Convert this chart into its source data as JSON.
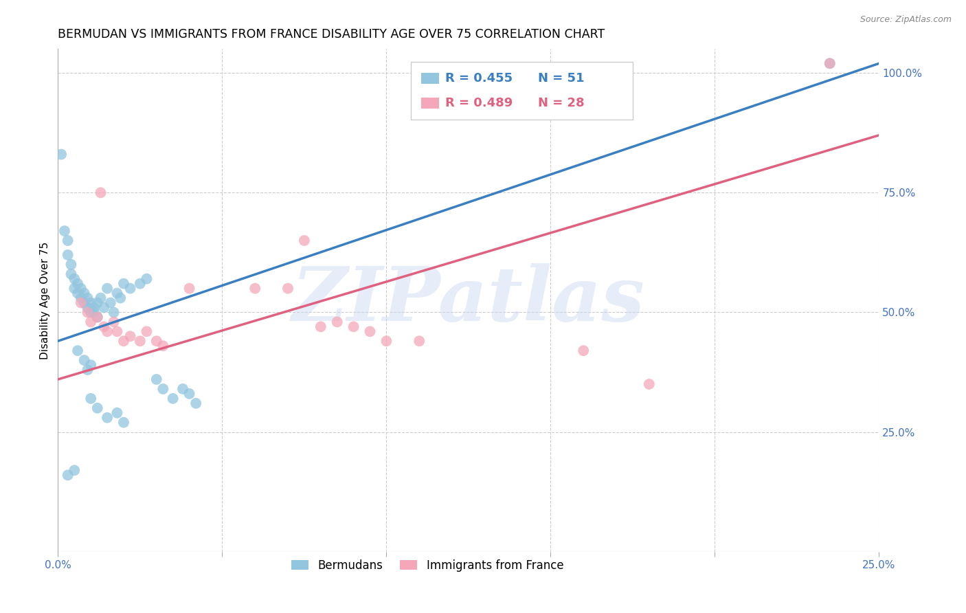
{
  "title": "BERMUDAN VS IMMIGRANTS FROM FRANCE DISABILITY AGE OVER 75 CORRELATION CHART",
  "source": "Source: ZipAtlas.com",
  "ylabel_left": "Disability Age Over 75",
  "x_min": 0.0,
  "x_max": 0.25,
  "y_min": 0.0,
  "y_max": 1.05,
  "x_ticks": [
    0.0,
    0.05,
    0.1,
    0.15,
    0.2,
    0.25
  ],
  "x_tick_labels": [
    "0.0%",
    "",
    "",
    "",
    "",
    "25.0%"
  ],
  "y_ticks_right": [
    0.25,
    0.5,
    0.75,
    1.0
  ],
  "y_tick_labels_right": [
    "25.0%",
    "50.0%",
    "75.0%",
    "100.0%"
  ],
  "blue_color": "#92c5de",
  "blue_line_color": "#3a7fc1",
  "pink_color": "#f4a7b9",
  "pink_line_color": "#e06080",
  "blue_R": 0.455,
  "blue_N": 51,
  "pink_R": 0.489,
  "pink_N": 28,
  "legend_label_blue": "Bermudans",
  "legend_label_pink": "Immigrants from France",
  "watermark": "ZIPatlas",
  "watermark_color": "#c8d8f0",
  "blue_line_x0": 0.0,
  "blue_line_y0": 0.44,
  "blue_line_x1": 0.25,
  "blue_line_y1": 1.02,
  "pink_line_x0": 0.0,
  "pink_line_y0": 0.36,
  "pink_line_x1": 0.25,
  "pink_line_y1": 0.87,
  "background_color": "#ffffff",
  "grid_color": "#cccccc",
  "title_fontsize": 12.5,
  "label_fontsize": 11,
  "tick_fontsize": 11,
  "right_tick_color": "#4472c4",
  "bottom_tick_color": "#4472c4",
  "blue_dots": [
    [
      0.001,
      0.83
    ],
    [
      0.002,
      0.67
    ],
    [
      0.003,
      0.65
    ],
    [
      0.003,
      0.62
    ],
    [
      0.004,
      0.6
    ],
    [
      0.004,
      0.58
    ],
    [
      0.005,
      0.57
    ],
    [
      0.005,
      0.55
    ],
    [
      0.006,
      0.56
    ],
    [
      0.006,
      0.54
    ],
    [
      0.007,
      0.55
    ],
    [
      0.007,
      0.53
    ],
    [
      0.008,
      0.54
    ],
    [
      0.008,
      0.52
    ],
    [
      0.009,
      0.53
    ],
    [
      0.009,
      0.51
    ],
    [
      0.01,
      0.52
    ],
    [
      0.01,
      0.5
    ],
    [
      0.011,
      0.51
    ],
    [
      0.011,
      0.5
    ],
    [
      0.012,
      0.52
    ],
    [
      0.012,
      0.49
    ],
    [
      0.013,
      0.53
    ],
    [
      0.014,
      0.51
    ],
    [
      0.015,
      0.55
    ],
    [
      0.016,
      0.52
    ],
    [
      0.017,
      0.5
    ],
    [
      0.018,
      0.54
    ],
    [
      0.019,
      0.53
    ],
    [
      0.02,
      0.56
    ],
    [
      0.022,
      0.55
    ],
    [
      0.025,
      0.56
    ],
    [
      0.027,
      0.57
    ],
    [
      0.03,
      0.36
    ],
    [
      0.032,
      0.34
    ],
    [
      0.035,
      0.32
    ],
    [
      0.038,
      0.34
    ],
    [
      0.04,
      0.33
    ],
    [
      0.042,
      0.31
    ],
    [
      0.01,
      0.32
    ],
    [
      0.012,
      0.3
    ],
    [
      0.015,
      0.28
    ],
    [
      0.018,
      0.29
    ],
    [
      0.02,
      0.27
    ],
    [
      0.006,
      0.42
    ],
    [
      0.008,
      0.4
    ],
    [
      0.009,
      0.38
    ],
    [
      0.01,
      0.39
    ],
    [
      0.005,
      0.17
    ],
    [
      0.003,
      0.16
    ],
    [
      0.235,
      1.02
    ]
  ],
  "pink_dots": [
    [
      0.007,
      0.52
    ],
    [
      0.009,
      0.5
    ],
    [
      0.01,
      0.48
    ],
    [
      0.012,
      0.49
    ],
    [
      0.014,
      0.47
    ],
    [
      0.015,
      0.46
    ],
    [
      0.017,
      0.48
    ],
    [
      0.018,
      0.46
    ],
    [
      0.02,
      0.44
    ],
    [
      0.022,
      0.45
    ],
    [
      0.025,
      0.44
    ],
    [
      0.027,
      0.46
    ],
    [
      0.03,
      0.44
    ],
    [
      0.032,
      0.43
    ],
    [
      0.013,
      0.75
    ],
    [
      0.04,
      0.55
    ],
    [
      0.06,
      0.55
    ],
    [
      0.07,
      0.55
    ],
    [
      0.075,
      0.65
    ],
    [
      0.08,
      0.47
    ],
    [
      0.085,
      0.48
    ],
    [
      0.09,
      0.47
    ],
    [
      0.095,
      0.46
    ],
    [
      0.1,
      0.44
    ],
    [
      0.11,
      0.44
    ],
    [
      0.16,
      0.42
    ],
    [
      0.18,
      0.35
    ],
    [
      0.235,
      1.02
    ]
  ]
}
